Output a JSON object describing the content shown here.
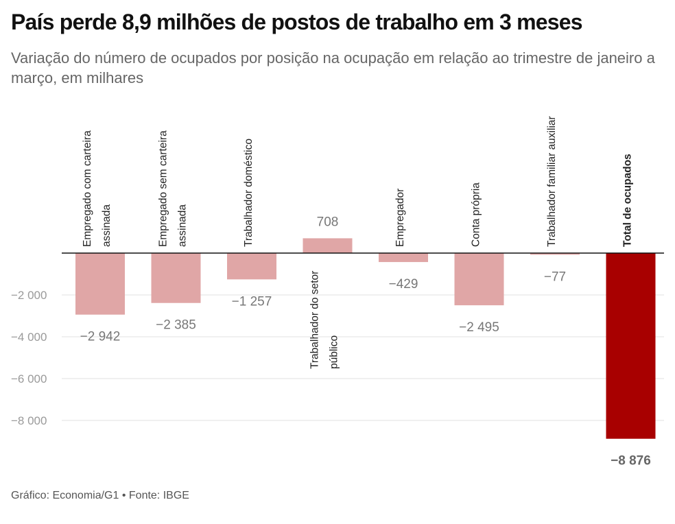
{
  "title": "País perde 8,9 milhões de postos de trabalho em 3 meses",
  "subtitle": "Variação do número de ocupados por posição na ocupação em relação ao trimestre de janeiro a março, em milhares",
  "source": "Gráfico: Economia/G1 • Fonte: IBGE",
  "colors": {
    "bar": "#e0a6a6",
    "total_bar": "#a80000",
    "grid": "#e2e2e2",
    "zero_line": "#111111"
  },
  "chart_data": {
    "type": "bar",
    "categories": [
      [
        "Empregado com carteira",
        "assinada"
      ],
      [
        "Empregado sem carteira",
        "assinada"
      ],
      [
        "Trabalhador doméstico"
      ],
      [
        "Trabalhador do setor",
        "público"
      ],
      [
        "Empregador"
      ],
      [
        "Conta própria"
      ],
      [
        "Trabalhador familiar auxiliar"
      ],
      [
        "Total de ocupados"
      ]
    ],
    "values": [
      -2942,
      -2385,
      -1257,
      708,
      -429,
      -2495,
      -77,
      -8876
    ],
    "value_labels": [
      "−2 942",
      "−2 385",
      "−1 257",
      "708",
      "−429",
      "−2 495",
      "−77",
      "−8 876"
    ],
    "highlight_index": 7,
    "ylim": [
      -9300,
      0
    ],
    "yticks": [
      -2000,
      -4000,
      -6000,
      -8000
    ],
    "ytick_labels": [
      "−2 000",
      "−4 000",
      "−6 000",
      "−8 000"
    ],
    "grid": true,
    "xlabel": "",
    "ylabel": ""
  }
}
